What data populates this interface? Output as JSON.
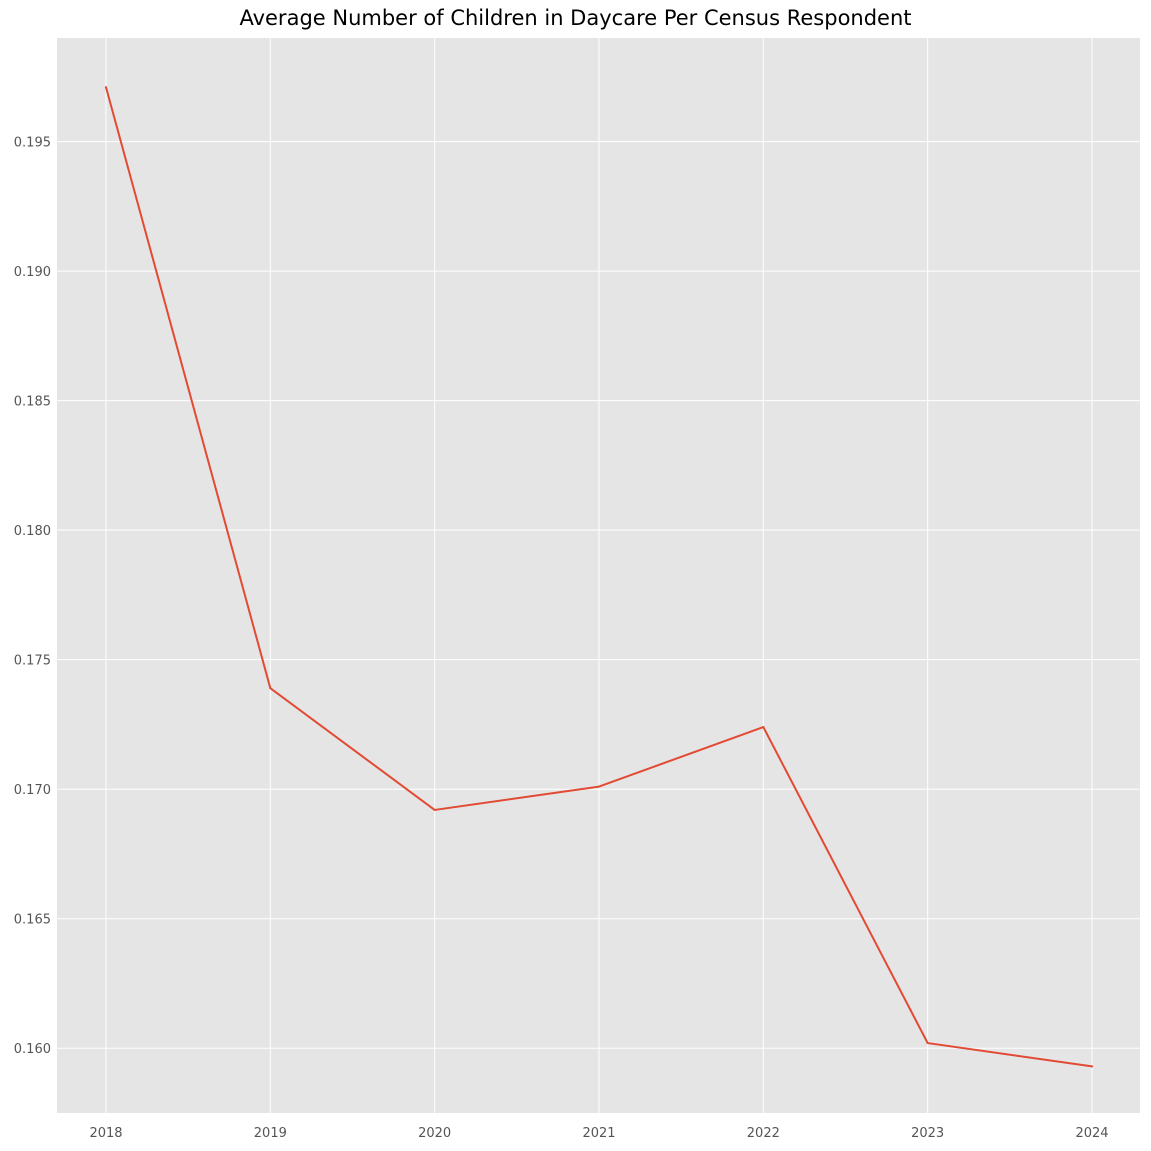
{
  "chart_data": {
    "type": "line",
    "title": "Average Number of Children in Daycare Per Census Respondent",
    "xlabel": "",
    "ylabel": "",
    "x": [
      "2018",
      "2019",
      "2020",
      "2021",
      "2022",
      "2023",
      "2024"
    ],
    "series": [
      {
        "values": [
          0.1971,
          0.1739,
          0.1692,
          0.1701,
          0.1724,
          0.1602,
          0.1593
        ],
        "color": "#E24A33"
      }
    ],
    "yticks": [
      "0.160",
      "0.165",
      "0.170",
      "0.175",
      "0.180",
      "0.185",
      "0.190",
      "0.195"
    ],
    "ylim": [
      0.1575,
      0.199
    ],
    "grid": true,
    "legend": "none",
    "style": {
      "plot_background": "#E5E5E5",
      "grid_color": "#FFFFFF",
      "tick_label_color": "#555555"
    }
  }
}
